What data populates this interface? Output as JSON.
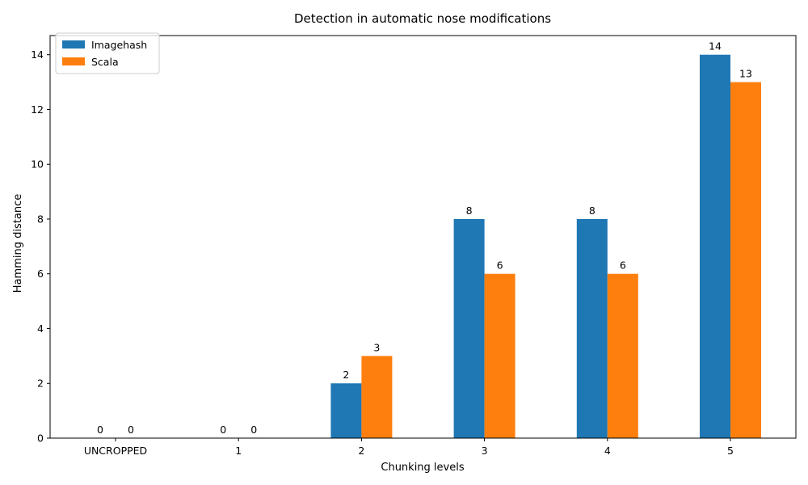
{
  "chart_data": {
    "type": "bar",
    "title": "Detection in automatic nose modifications",
    "xlabel": "Chunking levels",
    "ylabel": "Hamming distance",
    "categories": [
      "UNCROPPED",
      "1",
      "2",
      "3",
      "4",
      "5"
    ],
    "series": [
      {
        "name": "Imagehash",
        "color": "#1f77b4",
        "values": [
          0,
          0,
          2,
          8,
          8,
          14
        ]
      },
      {
        "name": "Scala",
        "color": "#ff7f0e",
        "values": [
          0,
          0,
          3,
          6,
          6,
          13
        ]
      }
    ],
    "ylim": [
      0,
      14.7
    ],
    "yticks": [
      0,
      2,
      4,
      6,
      8,
      10,
      12,
      14
    ],
    "grid": false,
    "legend_position": "top-left",
    "show_data_labels": true
  }
}
